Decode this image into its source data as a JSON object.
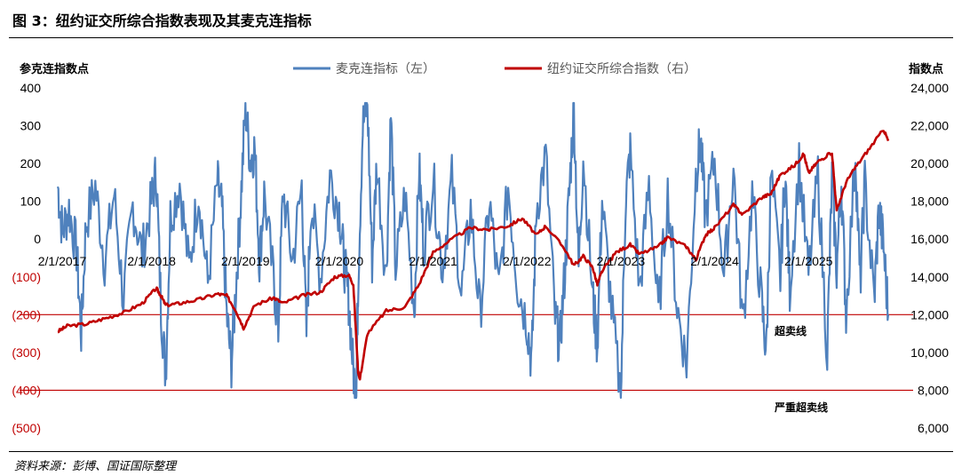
{
  "title": "图 3：纽约证交所综合指数表现及其麦克连指标",
  "source": "资料来源：彭博、国证国际整理",
  "chart_data": {
    "type": "line",
    "left_axis_label": "参克连指数点",
    "right_axis_label": "指数点",
    "left_ticks": [
      "400",
      "300",
      "200",
      "100",
      "0",
      "(100)",
      "(200)",
      "(300)",
      "(400)",
      "(500)"
    ],
    "right_ticks": [
      "24,000",
      "22,000",
      "20,000",
      "18,000",
      "16,000",
      "14,000",
      "12,000",
      "10,000",
      "8,000",
      "6,000"
    ],
    "left_ylim": [
      -500,
      400
    ],
    "right_ylim": [
      6000,
      24000
    ],
    "x_ticks": [
      "2/1/2017",
      "2/1/2018",
      "2/1/2019",
      "2/1/2020",
      "2/1/2021",
      "2/1/2022",
      "2/1/2023",
      "2/1/2024",
      "2/1/2025"
    ],
    "x_range_years": [
      2017.0,
      2025.85
    ],
    "series": [
      {
        "name": "麦克连指标（左）",
        "axis": "left",
        "color": "#4f81bd",
        "points": [
          [
            2017.0,
            140
          ],
          [
            2017.05,
            20
          ],
          [
            2017.12,
            80
          ],
          [
            2017.2,
            -30
          ],
          [
            2017.25,
            -250
          ],
          [
            2017.3,
            40
          ],
          [
            2017.4,
            140
          ],
          [
            2017.5,
            -60
          ],
          [
            2017.6,
            120
          ],
          [
            2017.7,
            -160
          ],
          [
            2017.8,
            90
          ],
          [
            2017.9,
            -40
          ],
          [
            2018.0,
            100
          ],
          [
            2018.05,
            180
          ],
          [
            2018.1,
            -180
          ],
          [
            2018.15,
            -360
          ],
          [
            2018.2,
            60
          ],
          [
            2018.3,
            150
          ],
          [
            2018.4,
            -80
          ],
          [
            2018.5,
            130
          ],
          [
            2018.6,
            -120
          ],
          [
            2018.7,
            150
          ],
          [
            2018.75,
            80
          ],
          [
            2018.8,
            -200
          ],
          [
            2018.85,
            -330
          ],
          [
            2018.9,
            -120
          ],
          [
            2018.95,
            100
          ],
          [
            2019.0,
            350
          ],
          [
            2019.05,
            210
          ],
          [
            2019.1,
            240
          ],
          [
            2019.15,
            -60
          ],
          [
            2019.2,
            120
          ],
          [
            2019.3,
            -110
          ],
          [
            2019.35,
            -240
          ],
          [
            2019.4,
            130
          ],
          [
            2019.5,
            -60
          ],
          [
            2019.6,
            140
          ],
          [
            2019.65,
            -250
          ],
          [
            2019.7,
            100
          ],
          [
            2019.8,
            -100
          ],
          [
            2019.9,
            170
          ],
          [
            2020.0,
            80
          ],
          [
            2020.05,
            -60
          ],
          [
            2020.1,
            -160
          ],
          [
            2020.15,
            -350
          ],
          [
            2020.18,
            -420
          ],
          [
            2020.2,
            -120
          ],
          [
            2020.25,
            300
          ],
          [
            2020.3,
            360
          ],
          [
            2020.35,
            -60
          ],
          [
            2020.4,
            200
          ],
          [
            2020.5,
            -100
          ],
          [
            2020.55,
            330
          ],
          [
            2020.6,
            -80
          ],
          [
            2020.7,
            120
          ],
          [
            2020.8,
            -190
          ],
          [
            2020.85,
            190
          ],
          [
            2020.9,
            -20
          ],
          [
            2021.0,
            160
          ],
          [
            2021.1,
            -80
          ],
          [
            2021.2,
            160
          ],
          [
            2021.3,
            -150
          ],
          [
            2021.4,
            80
          ],
          [
            2021.5,
            -200
          ],
          [
            2021.6,
            100
          ],
          [
            2021.7,
            -140
          ],
          [
            2021.8,
            140
          ],
          [
            2021.9,
            -120
          ],
          [
            2022.0,
            -220
          ],
          [
            2022.05,
            -330
          ],
          [
            2022.1,
            80
          ],
          [
            2022.2,
            220
          ],
          [
            2022.3,
            -210
          ],
          [
            2022.35,
            -280
          ],
          [
            2022.4,
            -100
          ],
          [
            2022.45,
            120
          ],
          [
            2022.5,
            350
          ],
          [
            2022.55,
            -80
          ],
          [
            2022.6,
            220
          ],
          [
            2022.7,
            -150
          ],
          [
            2022.75,
            -280
          ],
          [
            2022.8,
            100
          ],
          [
            2022.9,
            -180
          ],
          [
            2023.0,
            -420
          ],
          [
            2023.05,
            100
          ],
          [
            2023.1,
            230
          ],
          [
            2023.2,
            -140
          ],
          [
            2023.3,
            150
          ],
          [
            2023.4,
            -200
          ],
          [
            2023.5,
            120
          ],
          [
            2023.6,
            -180
          ],
          [
            2023.7,
            -330
          ],
          [
            2023.8,
            170
          ],
          [
            2023.85,
            260
          ],
          [
            2023.9,
            60
          ],
          [
            2024.0,
            210
          ],
          [
            2024.1,
            -100
          ],
          [
            2024.2,
            190
          ],
          [
            2024.3,
            -230
          ],
          [
            2024.4,
            120
          ],
          [
            2024.5,
            -170
          ],
          [
            2024.55,
            -300
          ],
          [
            2024.6,
            170
          ],
          [
            2024.7,
            -100
          ],
          [
            2024.75,
            180
          ],
          [
            2024.8,
            -130
          ],
          [
            2024.9,
            200
          ],
          [
            2025.0,
            -100
          ],
          [
            2025.1,
            170
          ],
          [
            2025.2,
            -300
          ],
          [
            2025.25,
            160
          ],
          [
            2025.3,
            -80
          ],
          [
            2025.35,
            150
          ],
          [
            2025.4,
            -200
          ],
          [
            2025.5,
            230
          ],
          [
            2025.55,
            -120
          ],
          [
            2025.6,
            150
          ],
          [
            2025.7,
            -160
          ],
          [
            2025.75,
            80
          ],
          [
            2025.8,
            -20
          ],
          [
            2025.85,
            -200
          ]
        ]
      },
      {
        "name": "纽约证交所综合指数（右）",
        "axis": "right",
        "color": "#c00000",
        "points": [
          [
            2017.0,
            11100
          ],
          [
            2017.1,
            11400
          ],
          [
            2017.3,
            11500
          ],
          [
            2017.5,
            11800
          ],
          [
            2017.7,
            12100
          ],
          [
            2017.9,
            12600
          ],
          [
            2018.05,
            13400
          ],
          [
            2018.1,
            13000
          ],
          [
            2018.15,
            12500
          ],
          [
            2018.3,
            12600
          ],
          [
            2018.5,
            12800
          ],
          [
            2018.7,
            13100
          ],
          [
            2018.8,
            13000
          ],
          [
            2018.9,
            12200
          ],
          [
            2018.98,
            11300
          ],
          [
            2019.1,
            12500
          ],
          [
            2019.3,
            12900
          ],
          [
            2019.4,
            12600
          ],
          [
            2019.6,
            13000
          ],
          [
            2019.8,
            13200
          ],
          [
            2019.95,
            14000
          ],
          [
            2020.1,
            14100
          ],
          [
            2020.15,
            13600
          ],
          [
            2020.2,
            9000
          ],
          [
            2020.22,
            8600
          ],
          [
            2020.3,
            11000
          ],
          [
            2020.5,
            12200
          ],
          [
            2020.7,
            12400
          ],
          [
            2020.85,
            13600
          ],
          [
            2021.0,
            15300
          ],
          [
            2021.2,
            16000
          ],
          [
            2021.4,
            16600
          ],
          [
            2021.6,
            16500
          ],
          [
            2021.8,
            16700
          ],
          [
            2021.95,
            17100
          ],
          [
            2022.1,
            16200
          ],
          [
            2022.2,
            16700
          ],
          [
            2022.4,
            15500
          ],
          [
            2022.5,
            14600
          ],
          [
            2022.6,
            15100
          ],
          [
            2022.7,
            14500
          ],
          [
            2022.75,
            13600
          ],
          [
            2022.8,
            14300
          ],
          [
            2022.95,
            15300
          ],
          [
            2023.1,
            15700
          ],
          [
            2023.2,
            15200
          ],
          [
            2023.4,
            15600
          ],
          [
            2023.5,
            16100
          ],
          [
            2023.7,
            15600
          ],
          [
            2023.8,
            14900
          ],
          [
            2023.9,
            16200
          ],
          [
            2024.0,
            16600
          ],
          [
            2024.2,
            17800
          ],
          [
            2024.3,
            17300
          ],
          [
            2024.5,
            18200
          ],
          [
            2024.6,
            18400
          ],
          [
            2024.7,
            19400
          ],
          [
            2024.85,
            19900
          ],
          [
            2024.95,
            20500
          ],
          [
            2025.0,
            19500
          ],
          [
            2025.1,
            20100
          ],
          [
            2025.25,
            20600
          ],
          [
            2025.3,
            17500
          ],
          [
            2025.4,
            19000
          ],
          [
            2025.5,
            19800
          ],
          [
            2025.65,
            20800
          ],
          [
            2025.8,
            21800
          ],
          [
            2025.85,
            21200
          ]
        ]
      }
    ],
    "reference_lines": [
      {
        "label": "超卖线",
        "axis": "left",
        "value": -200
      },
      {
        "label": "严重超卖线",
        "axis": "left",
        "value": -400
      }
    ],
    "legend_position": "top-center",
    "grid": false
  }
}
